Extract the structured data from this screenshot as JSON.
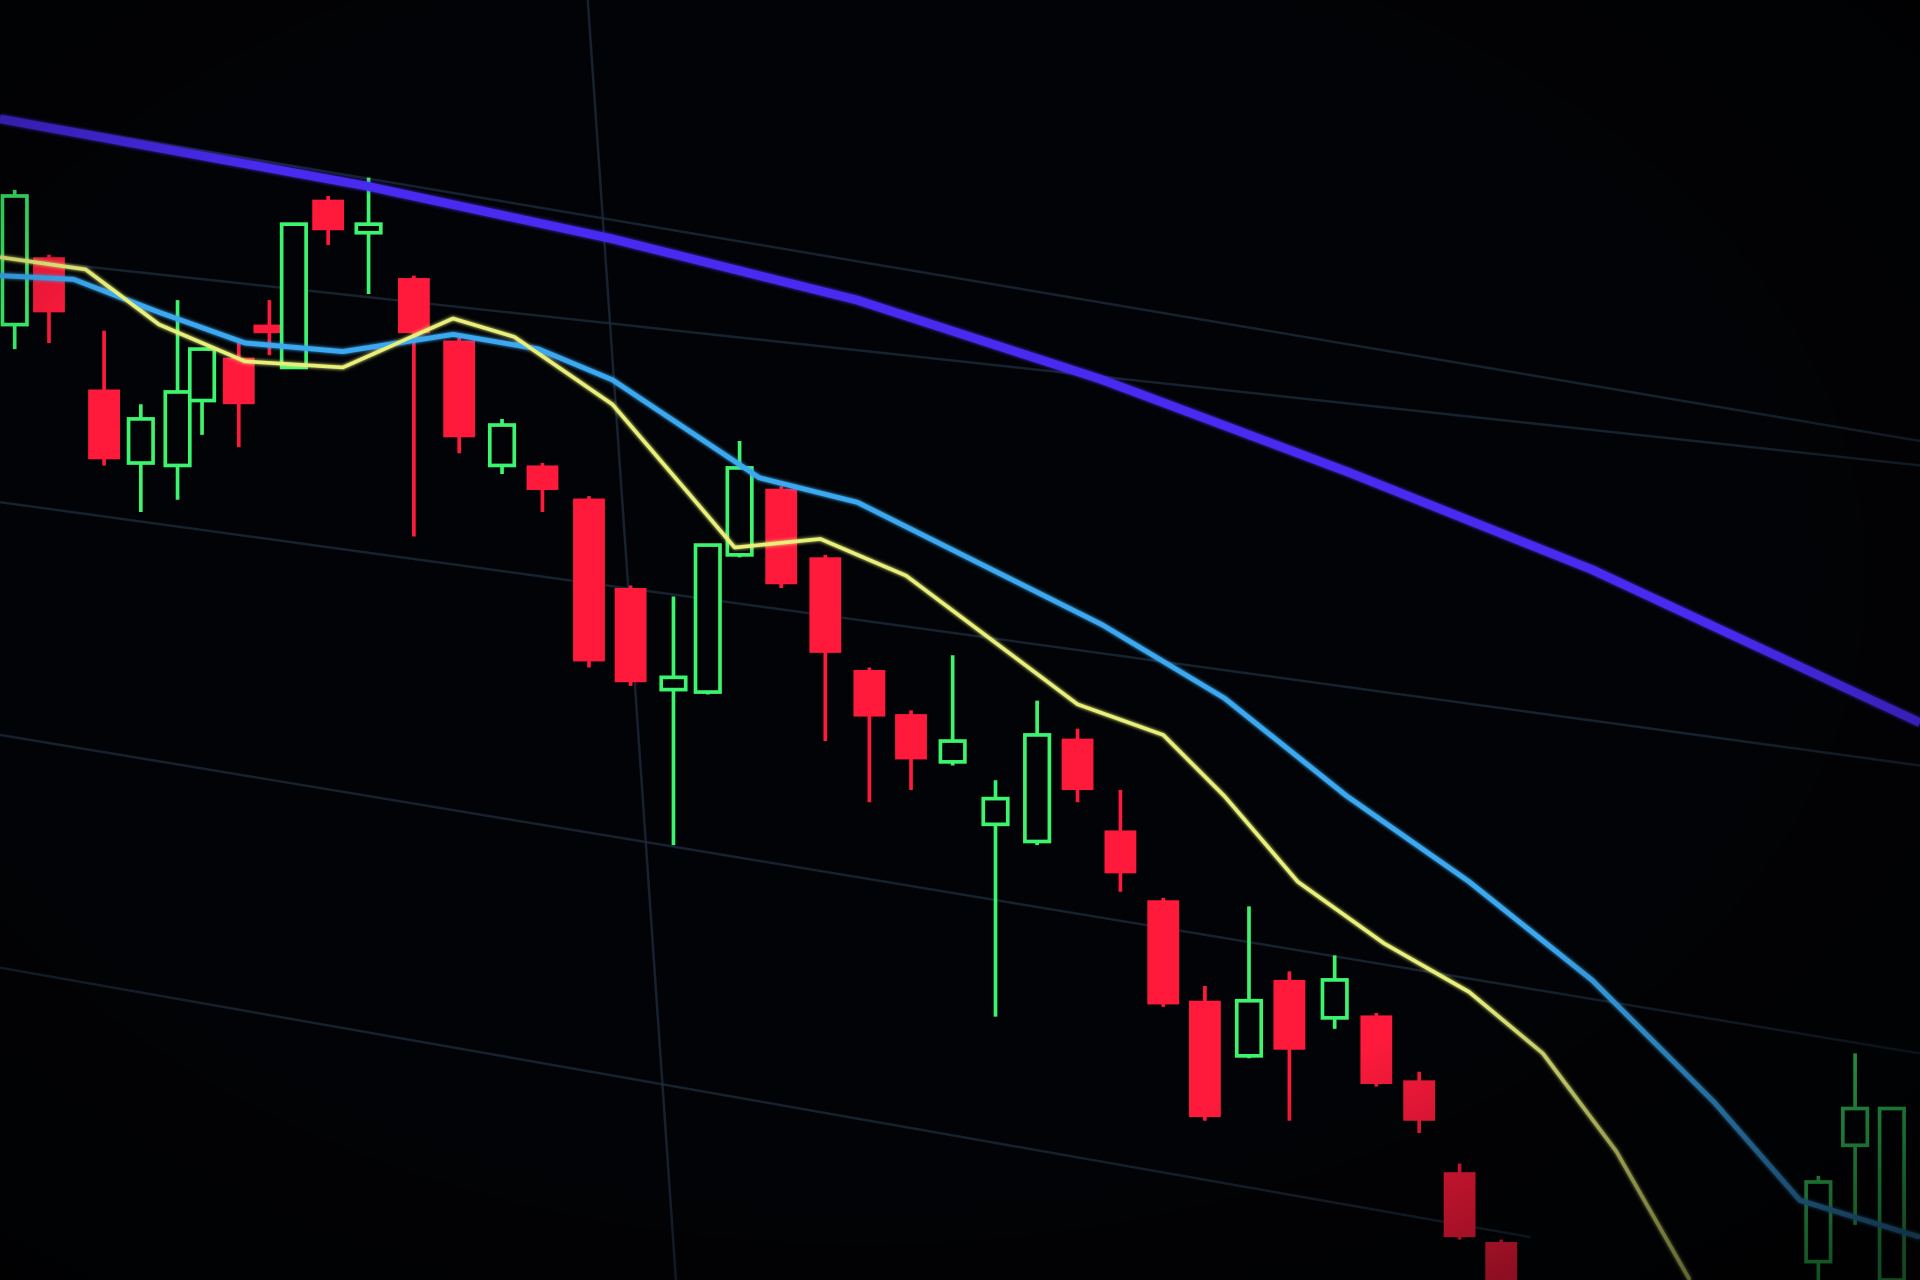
{
  "scene": {
    "subject": "candlestick-chart-on-screen",
    "background_color": "#020306",
    "colors": {
      "bearish_candle": "#ff1a3c",
      "bullish_candle": "#3cf56e",
      "moving_average_slow": "#4a2cf0",
      "moving_average_mid": "#3aa8f0",
      "moving_average_fast": "#e8f07a",
      "grid": "#1c2a3a"
    }
  }
}
